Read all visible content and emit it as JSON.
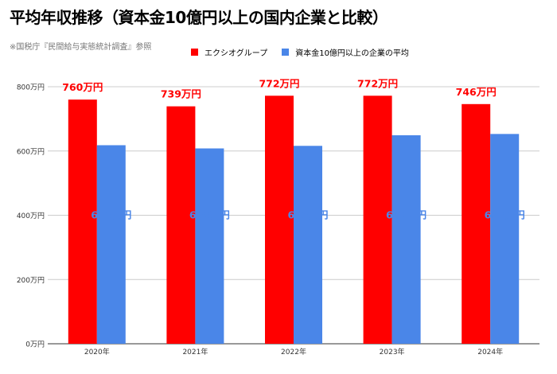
{
  "chart_data": {
    "type": "bar",
    "title": "平均年収推移（資本金10億円以上の国内企業と比較）",
    "subtitle": "※国税庁『民間給与実態統計調査』参照",
    "categories": [
      "2020年",
      "2021年",
      "2022年",
      "2023年",
      "2024年"
    ],
    "series": [
      {
        "name": "エクシオグループ",
        "values": [
          760,
          739,
          772,
          772,
          746
        ],
        "labels": [
          "760万円",
          "739万円",
          "772万円",
          "772万円",
          "746万円"
        ],
        "color": "#ff0000",
        "label_color": "#ff0000"
      },
      {
        "name": "資本金10億円以上の企業の平均",
        "values": [
          618,
          608,
          616,
          649,
          653
        ],
        "labels": [
          "618万円",
          "608万円",
          "616万円",
          "649万円",
          "653万円"
        ],
        "color": "#4a86e8",
        "label_color": "#4a86e8"
      }
    ],
    "yticks": [
      "0万円",
      "200万円",
      "400万円",
      "600万円",
      "800万円"
    ],
    "ylim": [
      0,
      800
    ],
    "xlabel": "",
    "ylabel": "",
    "grid": true,
    "legend_position": "top"
  }
}
